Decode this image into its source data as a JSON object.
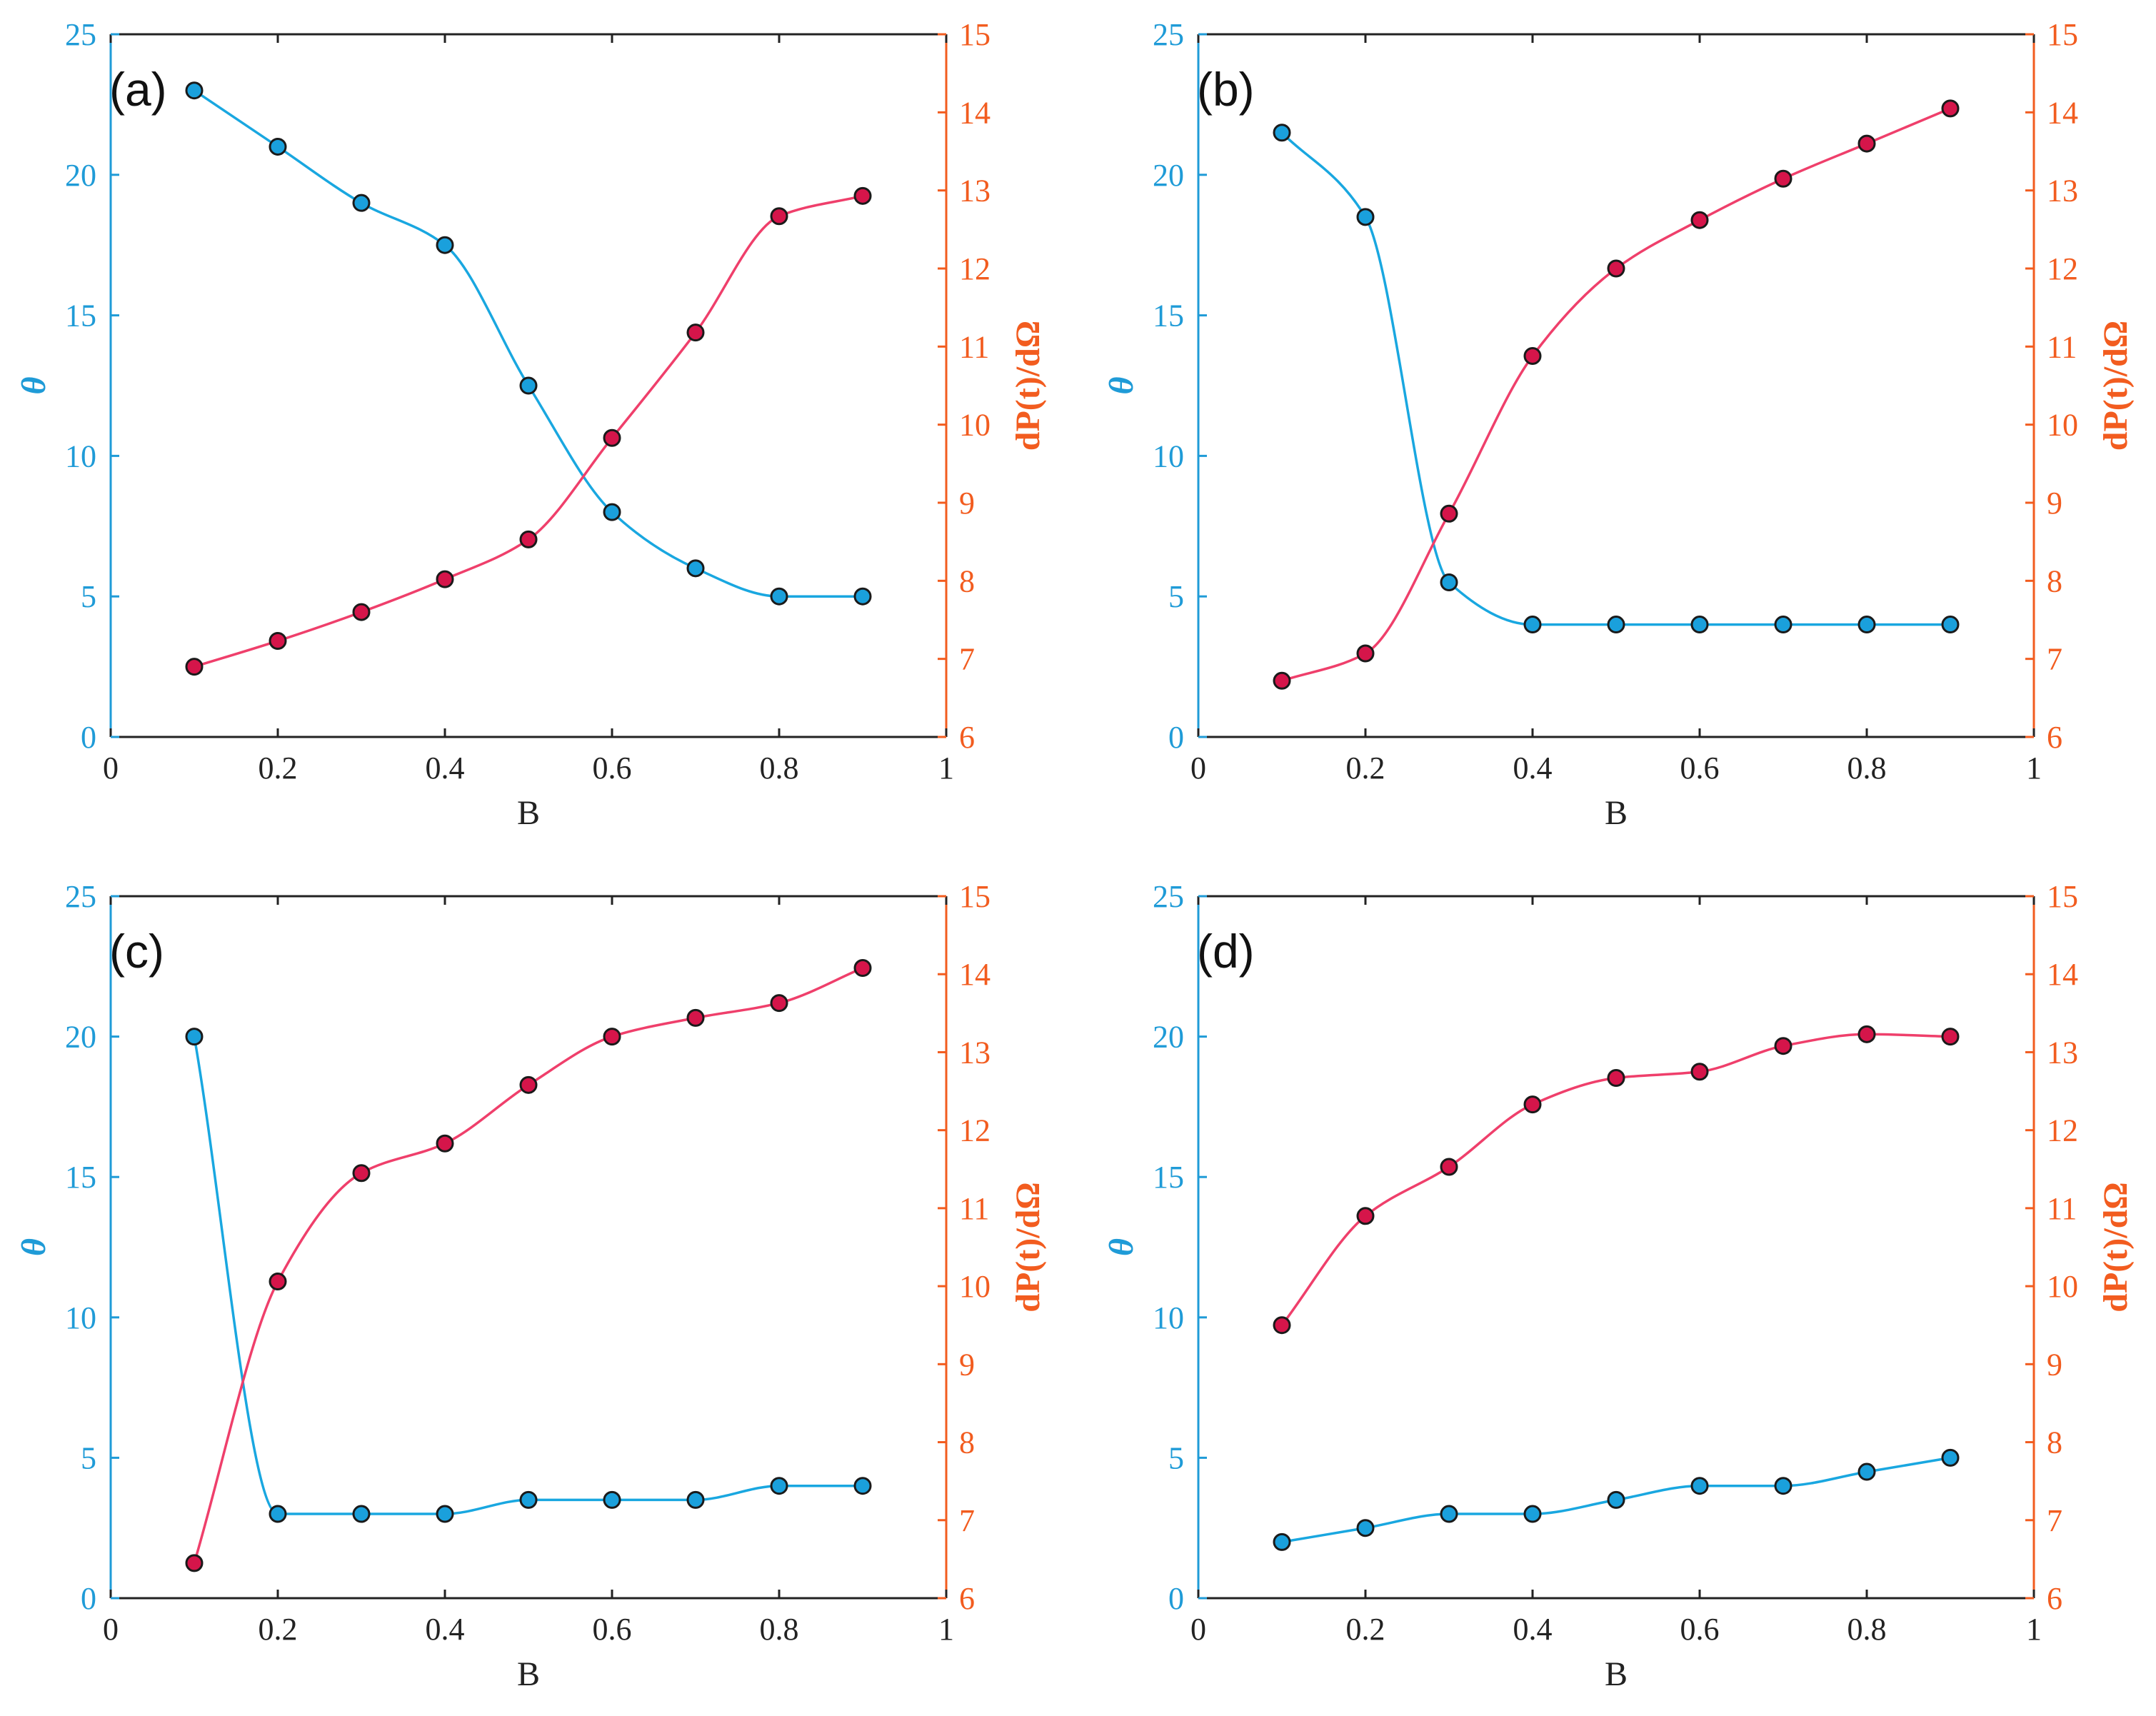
{
  "colors": {
    "theta": "#19a7e0",
    "power": "#ef3f6b",
    "left_axis": "#1f9bd7",
    "right_axis": "#f25c1f",
    "marker_theta": "#1aa0dc",
    "marker_power": "#d5154a",
    "frame": "#222222"
  },
  "chart_data": [
    {
      "type": "line",
      "panel_label": "(a)",
      "xlabel": "B",
      "ylabel_left": "θ",
      "ylabel_right": "dP(t)/dΩ",
      "xlim": [
        0,
        1
      ],
      "ylim_left": [
        0,
        25
      ],
      "ylim_right": [
        6,
        15
      ],
      "x_ticks": [
        "0",
        "0.2",
        "0.4",
        "0.6",
        "0.8",
        "1"
      ],
      "y_left_ticks": [
        "0",
        "5",
        "10",
        "15",
        "20",
        "25"
      ],
      "y_right_ticks": [
        "6",
        "7",
        "8",
        "9",
        "10",
        "11",
        "12",
        "13",
        "14",
        "15"
      ],
      "x": [
        0.1,
        0.2,
        0.3,
        0.4,
        0.5,
        0.6,
        0.7,
        0.8,
        0.9
      ],
      "series": [
        {
          "name": "θ",
          "axis": "left",
          "values": [
            23,
            21,
            19,
            17.5,
            12.5,
            8,
            6,
            5,
            5
          ]
        },
        {
          "name": "dP(t)/dΩ",
          "axis": "right",
          "values": [
            6.9,
            7.23,
            7.6,
            8.02,
            8.53,
            9.83,
            11.18,
            12.67,
            12.93
          ]
        }
      ]
    },
    {
      "type": "line",
      "panel_label": "(b)",
      "xlabel": "B",
      "ylabel_left": "θ",
      "ylabel_right": "dP(t)/dΩ",
      "xlim": [
        0,
        1
      ],
      "ylim_left": [
        0,
        25
      ],
      "ylim_right": [
        6,
        15
      ],
      "x_ticks": [
        "0",
        "0.2",
        "0.4",
        "0.6",
        "0.8",
        "1"
      ],
      "y_left_ticks": [
        "0",
        "5",
        "10",
        "15",
        "20",
        "25"
      ],
      "y_right_ticks": [
        "6",
        "7",
        "8",
        "9",
        "10",
        "11",
        "12",
        "13",
        "14",
        "15"
      ],
      "x": [
        0.1,
        0.2,
        0.3,
        0.4,
        0.5,
        0.6,
        0.7,
        0.8,
        0.9
      ],
      "series": [
        {
          "name": "θ",
          "axis": "left",
          "values": [
            21.5,
            18.5,
            5.5,
            4,
            4,
            4,
            4,
            4,
            4
          ]
        },
        {
          "name": "dP(t)/dΩ",
          "axis": "right",
          "values": [
            6.72,
            7.07,
            8.86,
            10.88,
            12.0,
            12.62,
            13.15,
            13.6,
            14.05
          ]
        }
      ]
    },
    {
      "type": "line",
      "panel_label": "(c)",
      "xlabel": "B",
      "ylabel_left": "θ",
      "ylabel_right": "dP(t)/dΩ",
      "xlim": [
        0,
        1
      ],
      "ylim_left": [
        0,
        25
      ],
      "ylim_right": [
        6,
        15
      ],
      "x_ticks": [
        "0",
        "0.2",
        "0.4",
        "0.6",
        "0.8",
        "1"
      ],
      "y_left_ticks": [
        "0",
        "5",
        "10",
        "15",
        "20",
        "25"
      ],
      "y_right_ticks": [
        "6",
        "7",
        "8",
        "9",
        "10",
        "11",
        "12",
        "13",
        "14",
        "15"
      ],
      "x": [
        0.1,
        0.2,
        0.3,
        0.4,
        0.5,
        0.6,
        0.7,
        0.8,
        0.9
      ],
      "series": [
        {
          "name": "θ",
          "axis": "left",
          "values": [
            20,
            3,
            3,
            3,
            3.5,
            3.5,
            3.5,
            4,
            4
          ]
        },
        {
          "name": "dP(t)/dΩ",
          "axis": "right",
          "values": [
            6.45,
            10.06,
            11.45,
            11.83,
            12.58,
            13.2,
            13.44,
            13.63,
            14.08
          ]
        }
      ]
    },
    {
      "type": "line",
      "panel_label": "(d)",
      "xlabel": "B",
      "ylabel_left": "θ",
      "ylabel_right": "dP(t)/dΩ",
      "xlim": [
        0,
        1
      ],
      "ylim_left": [
        0,
        25
      ],
      "ylim_right": [
        6,
        15
      ],
      "x_ticks": [
        "0",
        "0.2",
        "0.4",
        "0.6",
        "0.8",
        "1"
      ],
      "y_left_ticks": [
        "0",
        "5",
        "10",
        "15",
        "20",
        "25"
      ],
      "y_right_ticks": [
        "6",
        "7",
        "8",
        "9",
        "10",
        "11",
        "12",
        "13",
        "14",
        "15"
      ],
      "x": [
        0.1,
        0.2,
        0.3,
        0.4,
        0.5,
        0.6,
        0.7,
        0.8,
        0.9
      ],
      "series": [
        {
          "name": "θ",
          "axis": "left",
          "values": [
            2,
            2.5,
            3,
            3,
            3.5,
            4,
            4,
            4.5,
            5
          ]
        },
        {
          "name": "dP(t)/dΩ",
          "axis": "right",
          "values": [
            9.5,
            10.9,
            11.53,
            12.33,
            12.67,
            12.75,
            13.08,
            13.23,
            13.2
          ]
        }
      ]
    }
  ]
}
